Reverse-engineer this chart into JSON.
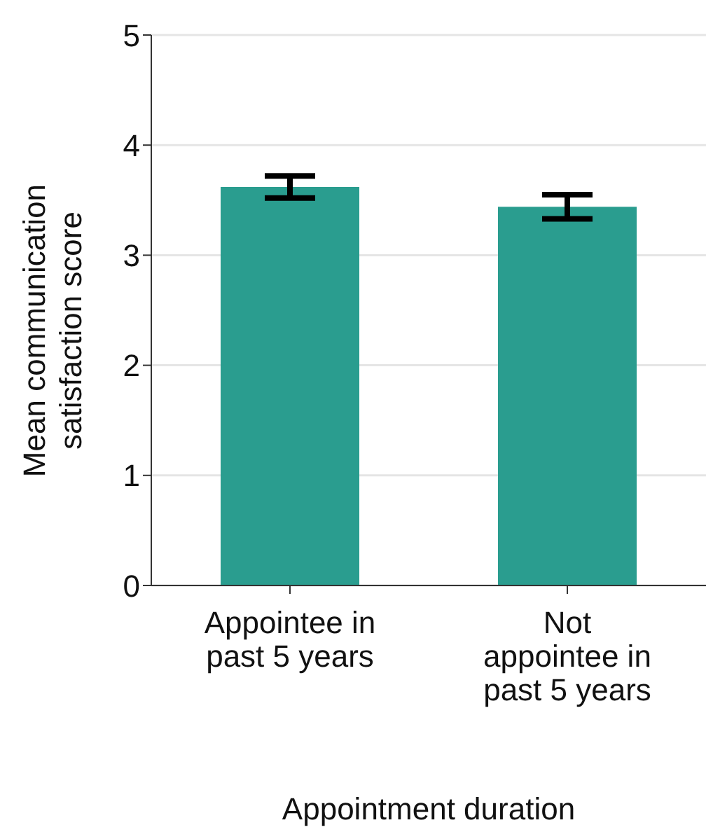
{
  "chart_data": {
    "type": "bar",
    "xlabel": "Appointment duration",
    "ylabel": "Mean communication satisfaction score",
    "categories": [
      "Appointee in past 5 years",
      "Not appointee in past 5 years"
    ],
    "values": [
      3.62,
      3.44
    ],
    "errors": [
      0.1,
      0.11
    ],
    "color": "#2a9d8f",
    "ylim": [
      0,
      5
    ],
    "yticks": [
      0,
      1,
      2,
      3,
      4,
      5
    ],
    "grid": "y"
  }
}
